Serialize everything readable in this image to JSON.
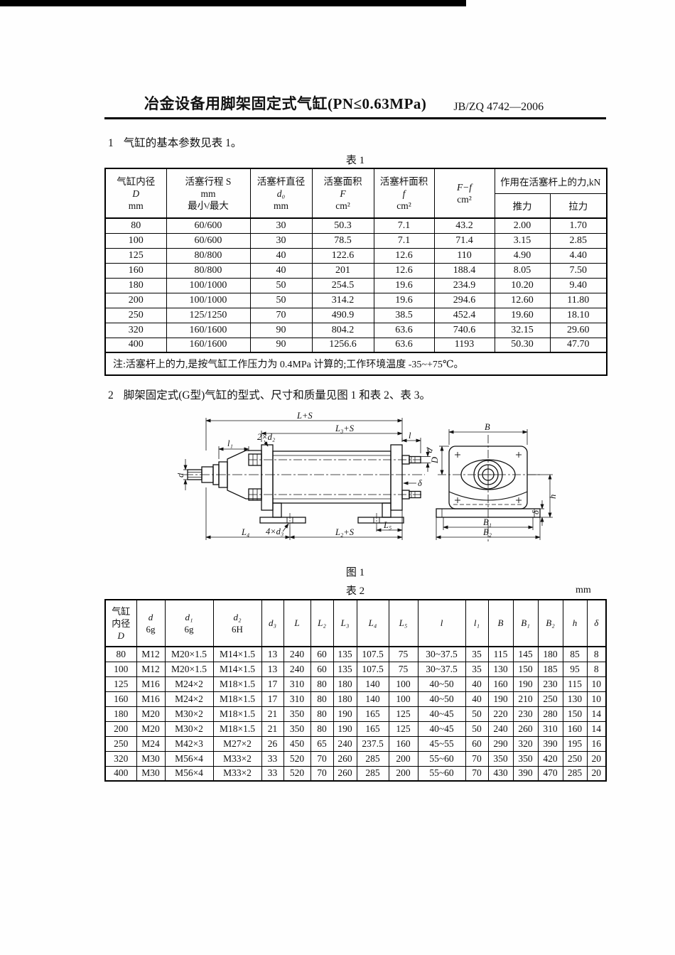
{
  "header": {
    "title": "冶金设备用脚架固定式气缸(PN≤0.63MPa)",
    "standard": "JB/ZQ 4742—2006"
  },
  "sections": {
    "s1_no": "1",
    "s1": "气缸的基本参数见表 1。",
    "s2_no": "2",
    "s2": "脚架固定式(G型)气缸的型式、尺寸和质量见图 1 和表 2、表 3。"
  },
  "table1": {
    "caption": "表 1",
    "headers": {
      "c1": [
        "气缸内径",
        "D",
        "mm"
      ],
      "c2": [
        "活塞行程 S",
        "mm",
        "最小/最大"
      ],
      "c3": [
        "活塞杆直径",
        "d₀",
        "mm"
      ],
      "c4": [
        "活塞面积",
        "F",
        "cm²"
      ],
      "c5": [
        "活塞杆面积",
        "f",
        "cm²"
      ],
      "c6": [
        "F−f",
        "cm²"
      ],
      "force_group": "作用在活塞杆上的力,kN",
      "push": "推力",
      "pull": "拉力"
    },
    "rows": [
      [
        "80",
        "60/600",
        "30",
        "50.3",
        "7.1",
        "43.2",
        "2.00",
        "1.70"
      ],
      [
        "100",
        "60/600",
        "30",
        "78.5",
        "7.1",
        "71.4",
        "3.15",
        "2.85"
      ],
      [
        "125",
        "80/800",
        "40",
        "122.6",
        "12.6",
        "110",
        "4.90",
        "4.40"
      ],
      [
        "160",
        "80/800",
        "40",
        "201",
        "12.6",
        "188.4",
        "8.05",
        "7.50"
      ],
      [
        "180",
        "100/1000",
        "50",
        "254.5",
        "19.6",
        "234.9",
        "10.20",
        "9.40"
      ],
      [
        "200",
        "100/1000",
        "50",
        "314.2",
        "19.6",
        "294.6",
        "12.60",
        "11.80"
      ],
      [
        "250",
        "125/1250",
        "70",
        "490.9",
        "38.5",
        "452.4",
        "19.60",
        "18.10"
      ],
      [
        "320",
        "160/1600",
        "90",
        "804.2",
        "63.6",
        "740.6",
        "32.15",
        "29.60"
      ],
      [
        "400",
        "160/1600",
        "90",
        "1256.6",
        "63.6",
        "1193",
        "50.30",
        "47.70"
      ]
    ],
    "note": "注:活塞杆上的力,是按气缸工作压力为 0.4MPa 计算的;工作环境温度 -35~+75℃。"
  },
  "figure": {
    "caption": "图 1",
    "labels": {
      "L_S": "L+S",
      "L3_S": "L₃+S",
      "two_d2": "2×d₂",
      "l1": "l₁",
      "d_left": "d",
      "l_top": "l",
      "d_right": "d",
      "delta_side": "δ",
      "four_d3": "4×d₃",
      "L4": "L₄",
      "L2_S": "L₂+S",
      "L5": "L₅",
      "B": "B",
      "D": "D",
      "h": "h",
      "delta_end": "δ",
      "B1": "B₁",
      "B2": "B₂"
    }
  },
  "table2": {
    "caption": "表 2",
    "unit": "mm",
    "headers": {
      "c1": [
        "气缸",
        "内径",
        "D"
      ],
      "c2": [
        "d",
        "6g"
      ],
      "c3": [
        "d₁",
        "6g"
      ],
      "c4": [
        "d₂",
        "6H"
      ],
      "c5": [
        "d₃"
      ],
      "c6": [
        "L"
      ],
      "c7": [
        "L₂"
      ],
      "c8": [
        "L₃"
      ],
      "c9": [
        "L₄"
      ],
      "c10": [
        "L₅"
      ],
      "c11": [
        "l"
      ],
      "c12": [
        "l₁"
      ],
      "c13": [
        "B"
      ],
      "c14": [
        "B₁"
      ],
      "c15": [
        "B₂"
      ],
      "c16": [
        "h"
      ],
      "c17": [
        "δ"
      ]
    },
    "rows": [
      [
        "80",
        "M12",
        "M20×1.5",
        "M14×1.5",
        "13",
        "240",
        "60",
        "135",
        "107.5",
        "75",
        "30~37.5",
        "35",
        "115",
        "145",
        "180",
        "85",
        "8"
      ],
      [
        "100",
        "M12",
        "M20×1.5",
        "M14×1.5",
        "13",
        "240",
        "60",
        "135",
        "107.5",
        "75",
        "30~37.5",
        "35",
        "130",
        "150",
        "185",
        "95",
        "8"
      ],
      [
        "125",
        "M16",
        "M24×2",
        "M18×1.5",
        "17",
        "310",
        "80",
        "180",
        "140",
        "100",
        "40~50",
        "40",
        "160",
        "190",
        "230",
        "115",
        "10"
      ],
      [
        "160",
        "M16",
        "M24×2",
        "M18×1.5",
        "17",
        "310",
        "80",
        "180",
        "140",
        "100",
        "40~50",
        "40",
        "190",
        "210",
        "250",
        "130",
        "10"
      ],
      [
        "180",
        "M20",
        "M30×2",
        "M18×1.5",
        "21",
        "350",
        "80",
        "190",
        "165",
        "125",
        "40~45",
        "50",
        "220",
        "230",
        "280",
        "150",
        "14"
      ],
      [
        "200",
        "M20",
        "M30×2",
        "M18×1.5",
        "21",
        "350",
        "80",
        "190",
        "165",
        "125",
        "40~45",
        "50",
        "240",
        "260",
        "310",
        "160",
        "14"
      ],
      [
        "250",
        "M24",
        "M42×3",
        "M27×2",
        "26",
        "450",
        "65",
        "240",
        "237.5",
        "160",
        "45~55",
        "60",
        "290",
        "320",
        "390",
        "195",
        "16"
      ],
      [
        "320",
        "M30",
        "M56×4",
        "M33×2",
        "33",
        "520",
        "70",
        "260",
        "285",
        "200",
        "55~60",
        "70",
        "350",
        "350",
        "420",
        "250",
        "20"
      ],
      [
        "400",
        "M30",
        "M56×4",
        "M33×2",
        "33",
        "520",
        "70",
        "260",
        "285",
        "200",
        "55~60",
        "70",
        "430",
        "390",
        "470",
        "285",
        "20"
      ]
    ]
  }
}
